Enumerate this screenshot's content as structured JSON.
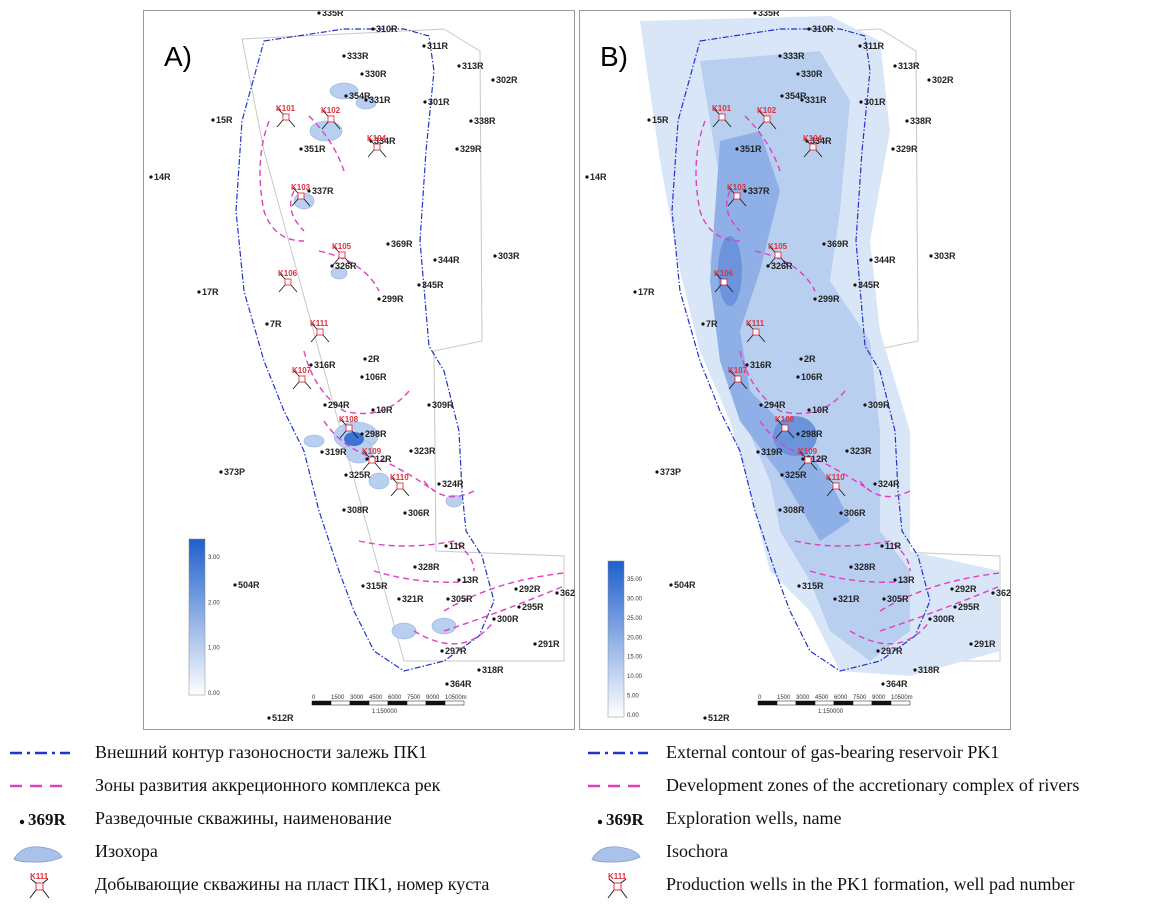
{
  "panels": [
    {
      "letter": "A)",
      "colorbar_ticks": [
        "3.00",
        "2.00",
        "1.00",
        "0.00"
      ]
    },
    {
      "letter": "B)",
      "colorbar_ticks": [
        "35.00",
        "30.00",
        "25.00",
        "20.00",
        "15.00",
        "10.00",
        "5.00",
        "0.00"
      ]
    }
  ],
  "scale_bar": {
    "ticks": [
      "0",
      "1500",
      "3000",
      "4500",
      "6000",
      "7500",
      "9000",
      "10500m"
    ],
    "ratio": "1:150000"
  },
  "exploration_wells": [
    "335R",
    "310R",
    "311R",
    "333R",
    "313R",
    "302R",
    "330R",
    "354R",
    "331R",
    "301R",
    "15R",
    "338R",
    "334R",
    "351R",
    "329R",
    "14R",
    "337R",
    "369R",
    "344R",
    "303R",
    "326R",
    "345R",
    "17R",
    "299R",
    "7R",
    "2R",
    "316R",
    "106R",
    "294R",
    "10R",
    "309R",
    "298R",
    "319R",
    "323R",
    "312R",
    "373P",
    "325R",
    "324R",
    "308R",
    "306R",
    "11R",
    "504R",
    "328R",
    "13R",
    "315R",
    "321R",
    "305R",
    "292R",
    "362",
    "295R",
    "300R",
    "291R",
    "297R",
    "318R",
    "364R",
    "512R"
  ],
  "well_pads": [
    "K101",
    "K102",
    "K104",
    "K103",
    "K105",
    "K106",
    "K111",
    "K107",
    "K108",
    "K109",
    "K110"
  ],
  "colors": {
    "contour": "#2233cc",
    "accretion_zone": "#e040c0",
    "pad": "#e0303a",
    "isochora_fill": "#a9c2ea",
    "isochora_deep": "#3b74d4"
  },
  "legend_ru": [
    {
      "symbol": "contour-line",
      "text": "Внешний контур газоносности залежь ПК1"
    },
    {
      "symbol": "accretion-dash",
      "text": "Зоны развития аккреционного комплекса рек"
    },
    {
      "symbol": "well-dot",
      "well_label": "369R",
      "text": "Разведочные скважины, наименование"
    },
    {
      "symbol": "isochora-blob",
      "text": "Изохора"
    },
    {
      "symbol": "pad-marker",
      "pad_label": "K111",
      "text": "Добывающие скважины на пласт ПК1, номер куста"
    }
  ],
  "legend_en": [
    {
      "symbol": "contour-line",
      "text": "External contour of gas-bearing reservoir PK1"
    },
    {
      "symbol": "accretion-dash",
      "text": "Development zones of the accretionary complex of rivers"
    },
    {
      "symbol": "well-dot",
      "well_label": "369R",
      "text": "Exploration wells, name"
    },
    {
      "symbol": "isochora-blob",
      "text": "Isochora"
    },
    {
      "symbol": "pad-marker",
      "pad_label": "K111",
      "text": "Production wells in the PK1 formation, well pad number"
    }
  ]
}
